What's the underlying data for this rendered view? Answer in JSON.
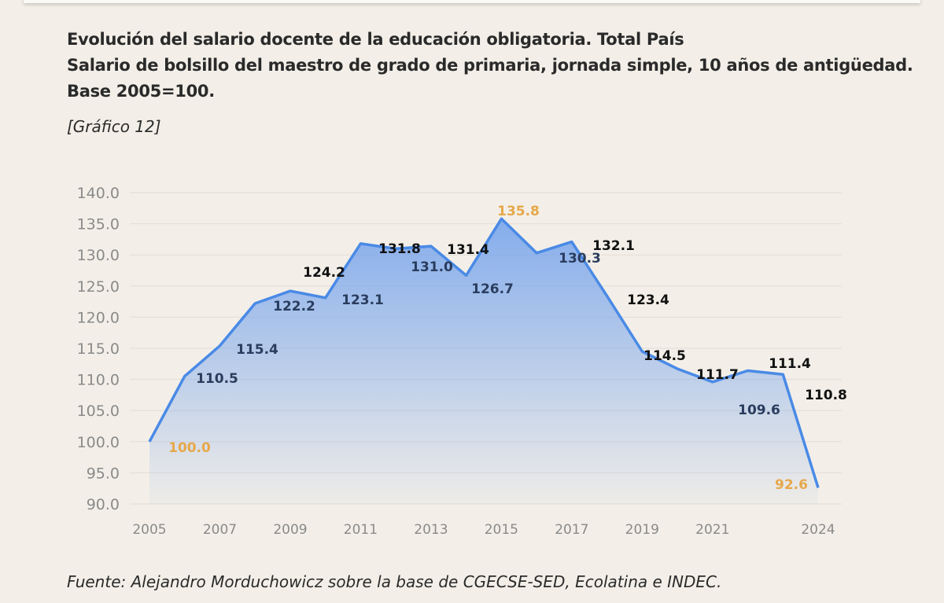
{
  "title_lines": [
    "Evolución del salario docente de la educación obligatoria. Total País",
    "Salario de bolsillo del maestro de grado de primaria, jornada simple, 10 años de antigüedad. Base 2005=100."
  ],
  "figure_label": "[Gráfico 12]",
  "source": "Fuente: Alejandro Morduchowicz sobre la base de CGECSE-SED, Ecolatina e INDEC.",
  "colors": {
    "line": "#4a8ae6",
    "fill_top": "#7fa9ec",
    "highlight_label": "#e6a84a",
    "label_dark": "#111111",
    "label_navy": "#2a3d5e",
    "axis_text": "#8a8a8a",
    "grid": "#e2ddd5"
  },
  "chart_data": {
    "type": "area",
    "title": "Evolución del salario docente de la educación obligatoria. Total País",
    "x": [
      2005,
      2006,
      2007,
      2008,
      2009,
      2010,
      2011,
      2012,
      2013,
      2014,
      2015,
      2016,
      2017,
      2018,
      2019,
      2020,
      2021,
      2022,
      2023,
      2024
    ],
    "values": [
      100.0,
      110.5,
      115.4,
      122.2,
      124.2,
      123.1,
      131.8,
      131.0,
      131.4,
      126.7,
      135.8,
      130.3,
      132.1,
      123.4,
      114.5,
      111.7,
      109.6,
      111.4,
      110.8,
      92.6
    ],
    "data_labels": [
      "100.0",
      "110.5",
      "115.4",
      "122.2",
      "124.2",
      "123.1",
      "131.8",
      "131.0",
      "131.4",
      "126.7",
      "135.8",
      "130.3",
      "132.1",
      "123.4",
      "114.5",
      "111.7",
      "109.6",
      "111.4",
      "110.8",
      "92.6"
    ],
    "highlighted": [
      2005,
      2015,
      2024
    ],
    "ylim": [
      90,
      140
    ],
    "yticks": [
      "90.0",
      "95.0",
      "100.0",
      "105.0",
      "110.0",
      "115.0",
      "120.0",
      "125.0",
      "130.0",
      "135.0",
      "140.0"
    ],
    "xticks": [
      "2005",
      "2007",
      "2009",
      "2011",
      "2013",
      "2015",
      "2017",
      "2019",
      "2021",
      "2024"
    ],
    "grid": true,
    "legend": "none"
  }
}
